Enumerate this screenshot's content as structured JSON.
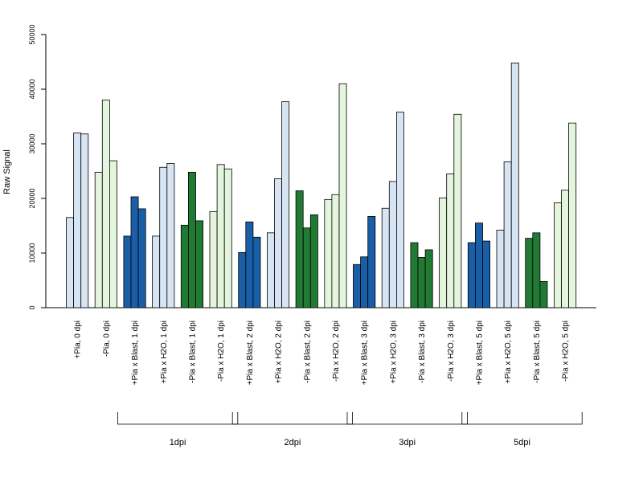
{
  "chart_data": {
    "type": "bar",
    "title": "",
    "xlabel": "",
    "ylabel": "Raw Signal",
    "ylim": [
      0,
      50000
    ],
    "yticks": [
      0,
      10000,
      20000,
      30000,
      40000,
      50000
    ],
    "ytick_labels": [
      "0",
      "10000",
      "20000",
      "30000",
      "40000",
      "50000"
    ],
    "grid": false,
    "legend": "none",
    "colors": {
      "light_blue": "#d6e4f3",
      "light_green": "#e3f5dc",
      "dark_blue": "#1a5ea8",
      "dark_green": "#217a33",
      "outline": "#000000"
    },
    "groups": [
      {
        "label": "+Pia, 0 dpi",
        "color": "light_blue",
        "values": [
          16500,
          32000,
          31800
        ]
      },
      {
        "label": "-Pia, 0 dpi",
        "color": "light_green",
        "values": [
          24800,
          38000,
          26900
        ]
      },
      {
        "label": "+Pia x Blast, 1 dpi",
        "color": "dark_blue",
        "values": [
          13100,
          20300,
          18100
        ]
      },
      {
        "label": "+Pia x H2O, 1 dpi",
        "color": "light_blue",
        "values": [
          13100,
          25700,
          26400
        ]
      },
      {
        "label": "-Pia x Blast, 1 dpi",
        "color": "dark_green",
        "values": [
          15100,
          24800,
          15900
        ]
      },
      {
        "label": "-Pia x H2O, 1 dpi",
        "color": "light_green",
        "values": [
          17600,
          26200,
          25400
        ]
      },
      {
        "label": "+Pia x Blast, 2 dpi",
        "color": "dark_blue",
        "values": [
          10100,
          15700,
          12900
        ]
      },
      {
        "label": "+Pia x H2O, 2 dpi",
        "color": "light_blue",
        "values": [
          13700,
          23600,
          37700
        ]
      },
      {
        "label": "-Pia x Blast, 2 dpi",
        "color": "dark_green",
        "values": [
          21400,
          14600,
          17000
        ]
      },
      {
        "label": "-Pia x H2O, 2 dpi",
        "color": "light_green",
        "values": [
          19800,
          20700,
          41000
        ]
      },
      {
        "label": "+Pia x Blast, 3 dpi",
        "color": "dark_blue",
        "values": [
          7900,
          9300,
          16700
        ]
      },
      {
        "label": "+Pia x H2O, 3 dpi",
        "color": "light_blue",
        "values": [
          18200,
          23100,
          35800
        ]
      },
      {
        "label": "-Pia x Blast, 3 dpi",
        "color": "dark_green",
        "values": [
          11900,
          9200,
          10600
        ]
      },
      {
        "label": "-Pia x H2O, 3 dpi",
        "color": "light_green",
        "values": [
          20100,
          24500,
          35400
        ]
      },
      {
        "label": "+Pia x Blast, 5 dpi",
        "color": "dark_blue",
        "values": [
          11900,
          15500,
          12200
        ]
      },
      {
        "label": "+Pia x H2O, 5 dpi",
        "color": "light_blue",
        "values": [
          14200,
          26700,
          44800
        ]
      },
      {
        "label": "-Pia x Blast, 5 dpi",
        "color": "dark_green",
        "values": [
          12700,
          13700,
          4800
        ]
      },
      {
        "label": "-Pia x H2O, 5 dpi",
        "color": "light_green",
        "values": [
          19200,
          21500,
          33800
        ]
      }
    ],
    "brackets": [
      {
        "label": "1dpi",
        "from_group": 2,
        "to_group": 5
      },
      {
        "label": "2dpi",
        "from_group": 6,
        "to_group": 9
      },
      {
        "label": "3dpi",
        "from_group": 10,
        "to_group": 13
      },
      {
        "label": "5dpi",
        "from_group": 14,
        "to_group": 17
      }
    ]
  }
}
